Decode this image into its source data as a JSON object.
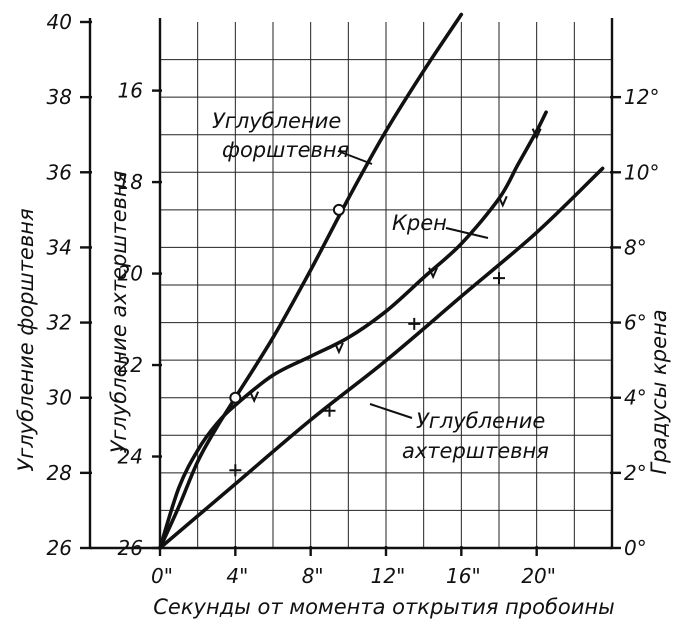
{
  "chart_data": {
    "type": "line",
    "xlabel": "Секунды от момента открытия пробоины",
    "x_ticks": [
      "0\"",
      "4\"",
      "8\"",
      "12\"",
      "16\"",
      "20\""
    ],
    "x_values": [
      0,
      4,
      8,
      12,
      16,
      20
    ],
    "xlim": [
      0,
      24
    ],
    "axes": {
      "forward": {
        "label": "Углубление форштевня",
        "ticks": [
          "26",
          "28",
          "30",
          "32",
          "34",
          "36",
          "38",
          "40"
        ],
        "values": [
          26,
          28,
          30,
          32,
          34,
          36,
          38,
          40
        ],
        "range": [
          26,
          40
        ]
      },
      "aft": {
        "label": "Углубление ахтерштевня",
        "ticks": [
          "16",
          "18",
          "20",
          "22",
          "24",
          "26"
        ],
        "values": [
          16,
          18,
          20,
          22,
          24,
          26
        ],
        "range": [
          26,
          14.5
        ],
        "inverted": true
      },
      "heel": {
        "label": "Градусы крена",
        "ticks": [
          "0°",
          "2°",
          "4°",
          "6°",
          "8°",
          "10°",
          "12°"
        ],
        "values": [
          0,
          2,
          4,
          6,
          8,
          10,
          12
        ],
        "range": [
          0,
          14
        ]
      }
    },
    "series": [
      {
        "name": "Углубление форштевня",
        "axis": "forward",
        "x": [
          0,
          1,
          2,
          3,
          4,
          6,
          8,
          10,
          12,
          14,
          16
        ],
        "y": [
          26,
          27.1,
          28.3,
          29.2,
          30,
          31.6,
          33.4,
          35.3,
          37.1,
          38.7,
          40.2
        ],
        "circles": [
          {
            "x": 4,
            "y": 30
          },
          {
            "x": 9.5,
            "y": 35
          }
        ],
        "label_lines": [
          "Углубление",
          "форштевня"
        ]
      },
      {
        "name": "Крен",
        "axis": "heel",
        "x": [
          0,
          1,
          2,
          3,
          4,
          6,
          8,
          10,
          12,
          14,
          16,
          18,
          19,
          20,
          20.5
        ],
        "y": [
          0,
          1.6,
          2.6,
          3.3,
          3.8,
          4.6,
          5.1,
          5.6,
          6.3,
          7.2,
          8.1,
          9.3,
          10.2,
          11.1,
          11.6
        ],
        "markers": [
          {
            "x": 5,
            "y": 4
          },
          {
            "x": 9.5,
            "y": 5.3
          },
          {
            "x": 14.5,
            "y": 7.3
          },
          {
            "x": 18.2,
            "y": 9.2
          },
          {
            "x": 20,
            "y": 11
          }
        ],
        "marker_char": "v"
      },
      {
        "name": "Углубление ахтерштевня",
        "axis": "aft",
        "x": [
          0,
          4,
          8,
          12,
          16,
          20,
          23.5
        ],
        "y": [
          26,
          24.6,
          23.2,
          21.9,
          20.5,
          19.1,
          17.7
        ],
        "markers": [
          {
            "x": 4,
            "y": 24.3
          },
          {
            "x": 9,
            "y": 23
          },
          {
            "x": 13.5,
            "y": 21.1
          },
          {
            "x": 18,
            "y": 20.1
          }
        ],
        "marker_char": "+",
        "label_lines": [
          "Углубление",
          "ахтерштевня"
        ]
      }
    ],
    "annotations": [
      "Крен"
    ],
    "grid": true
  }
}
